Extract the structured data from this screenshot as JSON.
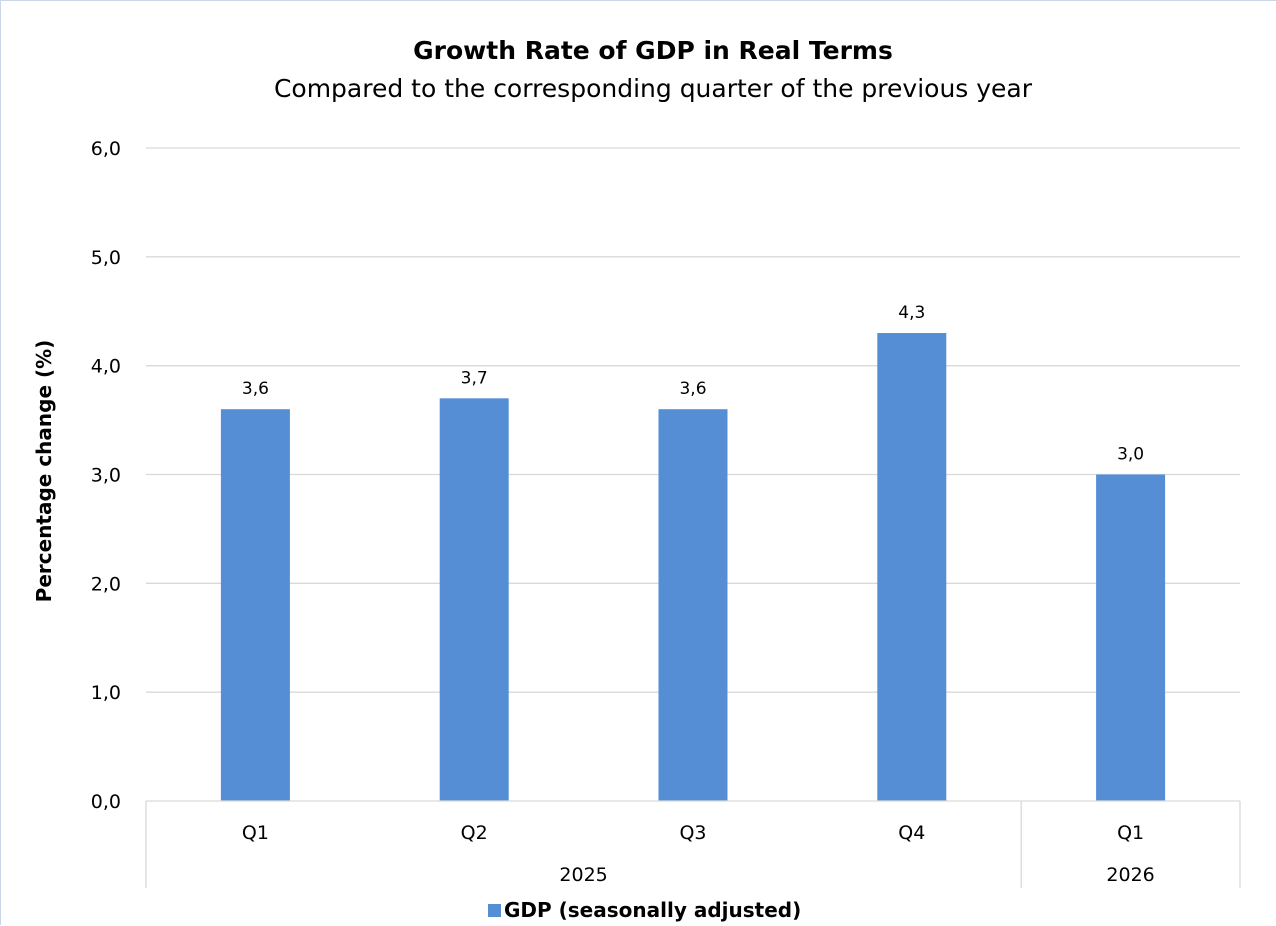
{
  "chart_data": {
    "type": "bar",
    "title": "Growth Rate of GDP in Real Terms",
    "subtitle": "Compared to the corresponding quarter of the previous year",
    "ylabel": "Percentage change (%)",
    "xlabel": "",
    "ylim": [
      0,
      6
    ],
    "yticks": [
      "0,0",
      "1,0",
      "2,0",
      "3,0",
      "4,0",
      "5,0",
      "6,0"
    ],
    "categories": [
      "Q1",
      "Q2",
      "Q3",
      "Q4",
      "Q1"
    ],
    "groups": [
      {
        "label": "2025",
        "count": 4
      },
      {
        "label": "2026",
        "count": 1
      }
    ],
    "series": [
      {
        "name": "GDP (seasonally adjusted)",
        "color": "#558ed5",
        "values": [
          3.6,
          3.7,
          3.6,
          4.3,
          3.0
        ],
        "labels": [
          "3,6",
          "3,7",
          "3,6",
          "4,3",
          "3,0"
        ]
      }
    ],
    "grid": true,
    "legend_position": "bottom"
  }
}
